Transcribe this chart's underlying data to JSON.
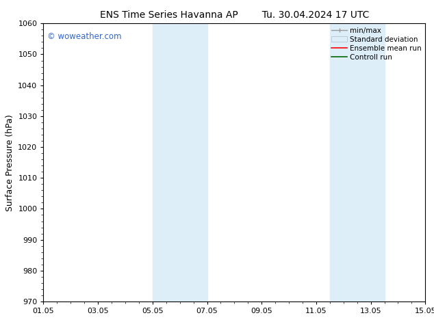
{
  "title_left": "ENS Time Series Havanna AP",
  "title_right": "Tu. 30.04.2024 17 UTC",
  "ylabel": "Surface Pressure (hPa)",
  "ylim": [
    970,
    1060
  ],
  "yticks": [
    970,
    980,
    990,
    1000,
    1010,
    1020,
    1030,
    1040,
    1050,
    1060
  ],
  "xlim": [
    0,
    14
  ],
  "xtick_labels": [
    "01.05",
    "03.05",
    "05.05",
    "07.05",
    "09.05",
    "11.05",
    "13.05",
    "15.05"
  ],
  "xtick_positions": [
    0,
    2,
    4,
    6,
    8,
    10,
    12,
    14
  ],
  "shaded_bands": [
    {
      "x_start": 4.0,
      "x_end": 6.0
    },
    {
      "x_start": 10.5,
      "x_end": 12.5
    }
  ],
  "shade_color": "#ddeef8",
  "watermark_text": "© woweather.com",
  "watermark_color": "#3366cc",
  "bg_color": "#ffffff",
  "spine_color": "#000000",
  "grid_color": "#cccccc",
  "title_fontsize": 10,
  "label_fontsize": 9,
  "tick_fontsize": 8,
  "legend_fontsize": 7.5
}
